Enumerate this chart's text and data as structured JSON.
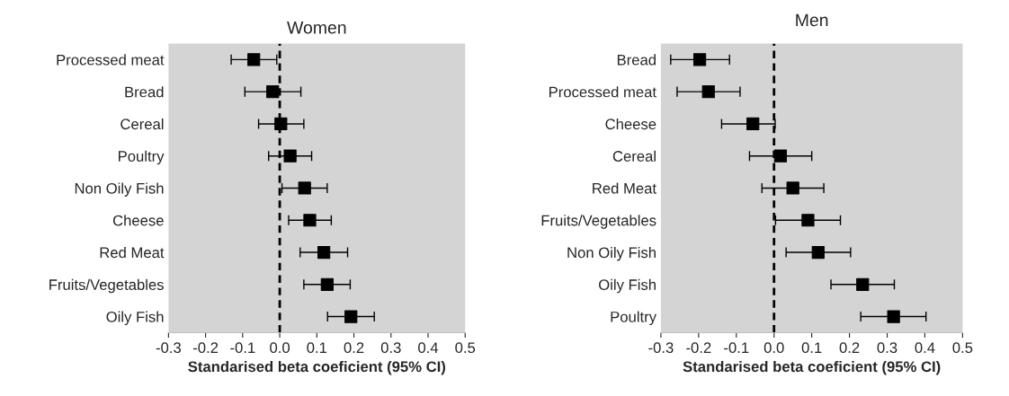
{
  "chart_data": [
    {
      "type": "scatter",
      "orientation": "horizontal",
      "title": "Women",
      "xlabel": "Standarised beta coeficient (95% CI)",
      "categories": [
        "Processed meat",
        "Bread",
        "Cereal",
        "Poultry",
        "Non Oily Fish",
        "Cheese",
        "Red Meat",
        "Fruits/Vegetables",
        "Oily Fish"
      ],
      "series": [
        {
          "color": "#000000",
          "values": [
            -0.07,
            -0.019,
            0.003,
            0.028,
            0.067,
            0.081,
            0.119,
            0.128,
            0.192
          ],
          "errors": [
            [
              -0.131,
              -0.008
            ],
            [
              -0.094,
              0.057
            ],
            [
              -0.057,
              0.065
            ],
            [
              -0.03,
              0.086
            ],
            [
              0.006,
              0.128
            ],
            [
              0.024,
              0.139
            ],
            [
              0.055,
              0.183
            ],
            [
              0.065,
              0.19
            ],
            [
              0.129,
              0.255
            ]
          ]
        }
      ],
      "xlim": [
        -0.3,
        0.5
      ],
      "xticks": [
        {
          "value": -0.3,
          "label": "-0.3"
        },
        {
          "value": -0.2,
          "label": "-0.2"
        },
        {
          "value": -0.1,
          "label": "-0.1"
        },
        {
          "value": 0,
          "label": "0.0"
        },
        {
          "value": 0.1,
          "label": "0.1"
        },
        {
          "value": 0.2,
          "label": "0.2"
        },
        {
          "value": 0.3,
          "label": "0.3"
        },
        {
          "value": 0.4,
          "label": "0.4"
        },
        {
          "value": 0.5,
          "label": "0.5"
        }
      ],
      "ref_lines": [
        {
          "axis": "x",
          "value": 0,
          "color": "#000000",
          "line_style": "dashed"
        }
      ],
      "marker": "square",
      "grid": false,
      "legend": false
    },
    {
      "type": "scatter",
      "orientation": "horizontal",
      "title": "Men",
      "xlabel": "Standarised beta coeficient (95% CI)",
      "categories": [
        "Bread",
        "Processed meat",
        "Cheese",
        "Cereal",
        "Red Meat",
        "Fruits/Vegetables",
        "Non Oily Fish",
        "Oily Fish",
        "Poultry"
      ],
      "series": [
        {
          "color": "#000000",
          "values": [
            -0.197,
            -0.174,
            -0.056,
            0.017,
            0.05,
            0.09,
            0.117,
            0.235,
            0.317
          ],
          "errors": [
            [
              -0.274,
              -0.118
            ],
            [
              -0.257,
              -0.09
            ],
            [
              -0.139,
              0.003
            ],
            [
              -0.065,
              0.1
            ],
            [
              -0.032,
              0.132
            ],
            [
              0.004,
              0.176
            ],
            [
              0.032,
              0.203
            ],
            [
              0.151,
              0.319
            ],
            [
              0.23,
              0.403
            ]
          ]
        }
      ],
      "xlim": [
        -0.3,
        0.5
      ],
      "xticks": [
        {
          "value": -0.3,
          "label": "-0.3"
        },
        {
          "value": -0.2,
          "label": "-0.2"
        },
        {
          "value": -0.1,
          "label": "-0.1"
        },
        {
          "value": 0,
          "label": "0.0"
        },
        {
          "value": 0.1,
          "label": "0.1"
        },
        {
          "value": 0.2,
          "label": "0.2"
        },
        {
          "value": 0.3,
          "label": "0.3"
        },
        {
          "value": 0.4,
          "label": "0.4"
        },
        {
          "value": 0.5,
          "label": "0.5"
        }
      ],
      "ref_lines": [
        {
          "axis": "x",
          "value": 0,
          "color": "#000000",
          "line_style": "dashed"
        }
      ],
      "marker": "square",
      "grid": false,
      "legend": false
    }
  ]
}
